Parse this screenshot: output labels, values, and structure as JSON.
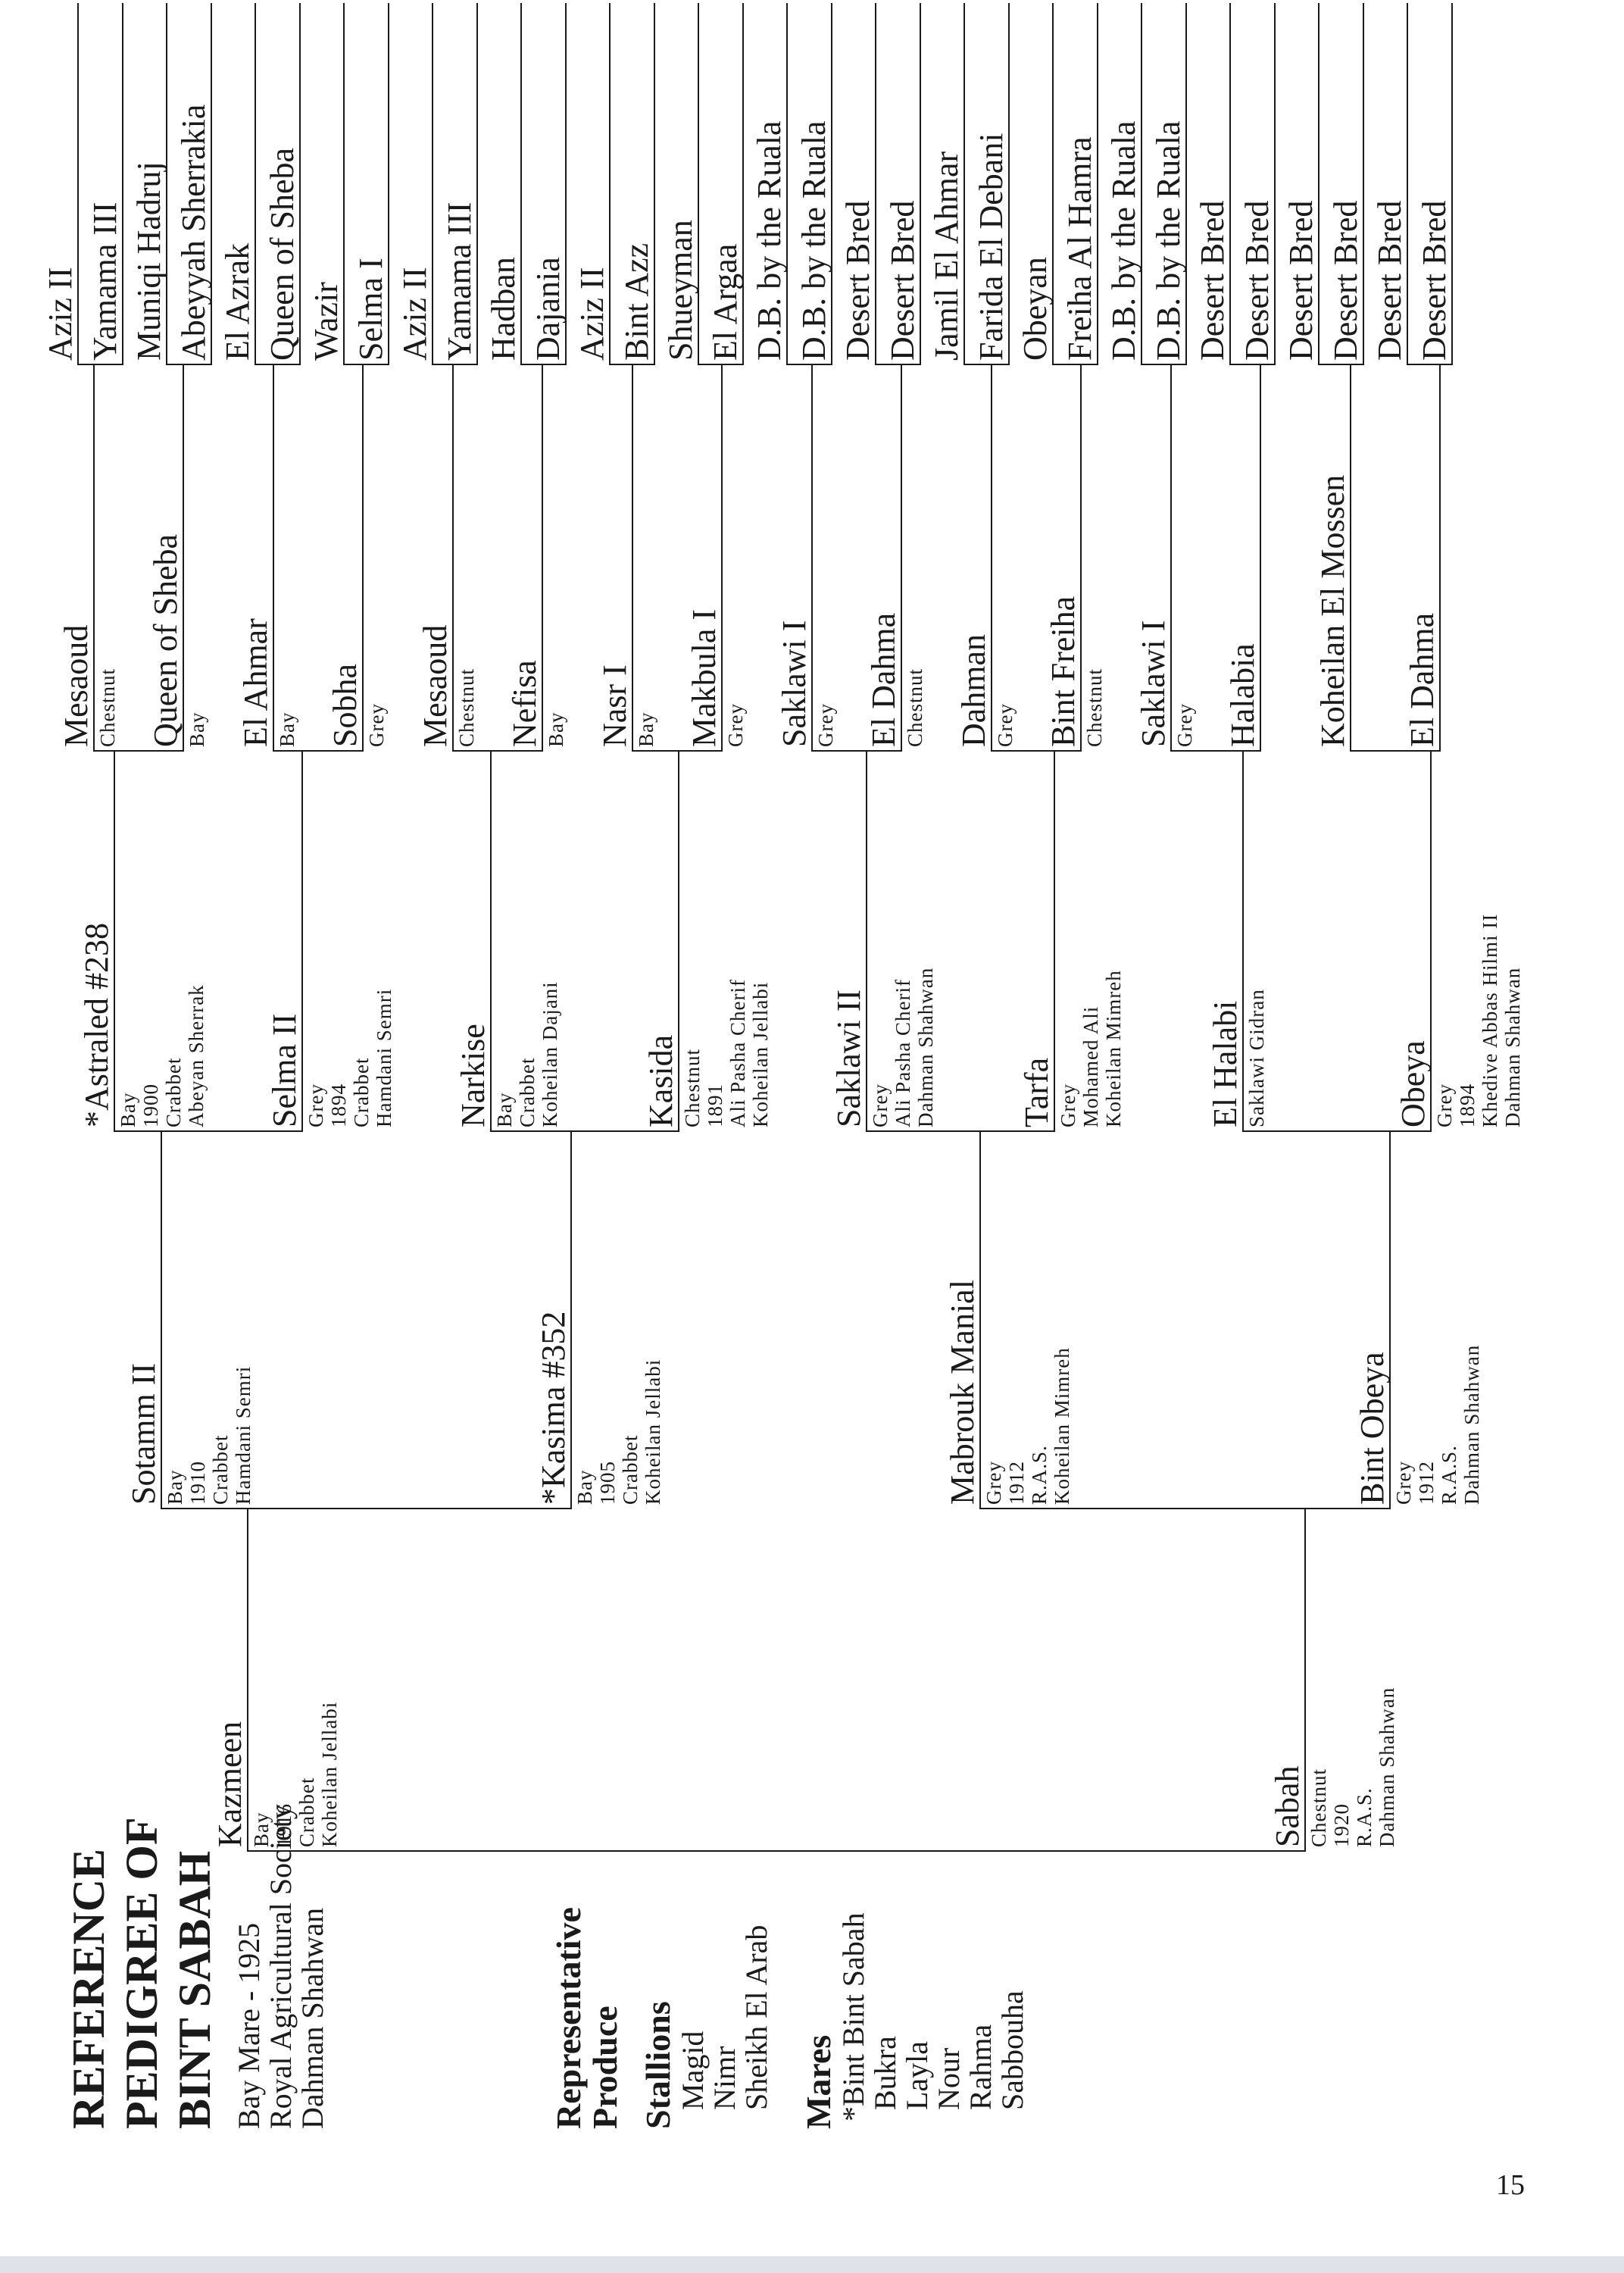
{
  "title_lines": [
    "REFERENCE",
    "PEDIGREE OF",
    "BINT SABAH"
  ],
  "subject_lines": [
    "Bay Mare - 1925",
    "Royal Agricultural Society",
    "Dahman Shahwan"
  ],
  "produce": {
    "heading_lines": [
      "Representative",
      "Produce"
    ],
    "stallions_heading": "Stallions",
    "stallions": [
      "Magid",
      "Nimr",
      "Sheikh El Arab"
    ],
    "mares_heading": "Mares",
    "mares": [
      "*Bint Bint Sabah",
      "Bukra",
      "Layla",
      "Nour",
      "Rahma",
      "Sabbouha"
    ]
  },
  "gen1": [
    {
      "name": "Kazmeen",
      "details": [
        "Bay",
        "1916",
        "Crabbet",
        "Koheilan Jellabi"
      ]
    },
    {
      "name": "Sabah",
      "details": [
        "Chestnut",
        "1920",
        "R.A.S.",
        "Dahman Shahwan"
      ]
    }
  ],
  "gen2": [
    {
      "name": "Sotamm II",
      "details": [
        "Bay",
        "1910",
        "Crabbet",
        "Hamdani Semri"
      ]
    },
    {
      "name": "*Kasima #352",
      "details": [
        "Bay",
        "1905",
        "Crabbet",
        "Koheilan Jellabi"
      ]
    },
    {
      "name": "Mabrouk Manial",
      "details": [
        "Grey",
        "1912",
        "R.A.S.",
        "Koheilan Mimreh"
      ]
    },
    {
      "name": "Bint Obeya",
      "details": [
        "Grey",
        "1912",
        "R.A.S.",
        "Dahman Shahwan"
      ]
    }
  ],
  "gen3": [
    {
      "name": "*Astraled #238",
      "details": [
        "Bay",
        "1900",
        "Crabbet",
        "Abeyan Sherrak"
      ]
    },
    {
      "name": "Selma II",
      "details": [
        "Grey",
        "1894",
        "Crabbet",
        "Hamdani Semri"
      ]
    },
    {
      "name": "Narkise",
      "details": [
        "Bay",
        "Crabbet",
        "Koheilan Dajani"
      ]
    },
    {
      "name": "Kasida",
      "details": [
        "Chestnut",
        "1891",
        "Ali Pasha Cherif",
        "Koheilan Jellabi"
      ]
    },
    {
      "name": "Saklawi II",
      "details": [
        "Grey",
        "Ali Pasha Cherif",
        "Dahman Shahwan"
      ]
    },
    {
      "name": "Tarfa",
      "details": [
        "Grey",
        "Mohamed Ali",
        "Koheilan Mimreh"
      ]
    },
    {
      "name": "El Halabi",
      "details": [
        "Saklawi Gidran"
      ]
    },
    {
      "name": "Obeya",
      "details": [
        "Grey",
        "1894",
        "Khedive Abbas Hilmi II",
        "Dahman Shahwan"
      ]
    }
  ],
  "gen4": [
    {
      "name": "Mesaoud",
      "color": "Chestnut"
    },
    {
      "name": "Queen of Sheba",
      "color": "Bay"
    },
    {
      "name": "El Ahmar",
      "color": "Bay"
    },
    {
      "name": "Sobha",
      "color": "Grey"
    },
    {
      "name": "Mesaoud",
      "color": "Chestnut"
    },
    {
      "name": "Nefisa",
      "color": "Bay"
    },
    {
      "name": "Nasr I",
      "color": "Bay"
    },
    {
      "name": "Makbula I",
      "color": "Grey"
    },
    {
      "name": "Saklawi I",
      "color": "Grey"
    },
    {
      "name": "El Dahma",
      "color": "Chestnut"
    },
    {
      "name": "Dahman",
      "color": "Grey"
    },
    {
      "name": "Bint Freiha",
      "color": "Chestnut"
    },
    {
      "name": "Saklawi I",
      "color": "Grey"
    },
    {
      "name": "Halabia",
      "color": ""
    },
    {
      "name": "Koheilan El Mossen",
      "color": ""
    },
    {
      "name": "El Dahma",
      "color": ""
    }
  ],
  "gen5": [
    "Aziz II",
    "Yamama III",
    "Muniqi Hadruj",
    "Abeyyah Sherrakia",
    "El Azrak",
    "Queen of Sheba",
    "Wazir",
    "Selma I",
    "Aziz II",
    "Yamama III",
    "Hadban",
    "Dajania",
    "Aziz II",
    "Bint Azz",
    "Shueyman",
    "El Argaa",
    "D.B. by the Ruala",
    "D.B. by the Ruala",
    "Desert Bred",
    "Desert Bred",
    "Jamil El Ahmar",
    "Farida El Debani",
    "Obeyan",
    "Freiha Al Hamra",
    "D.B. by the Ruala",
    "D.B. by the Ruala",
    "Desert Bred",
    "Desert Bred",
    "Desert Bred",
    "Desert Bred",
    "Desert Bred",
    "Desert Bred"
  ],
  "page_number": "15"
}
